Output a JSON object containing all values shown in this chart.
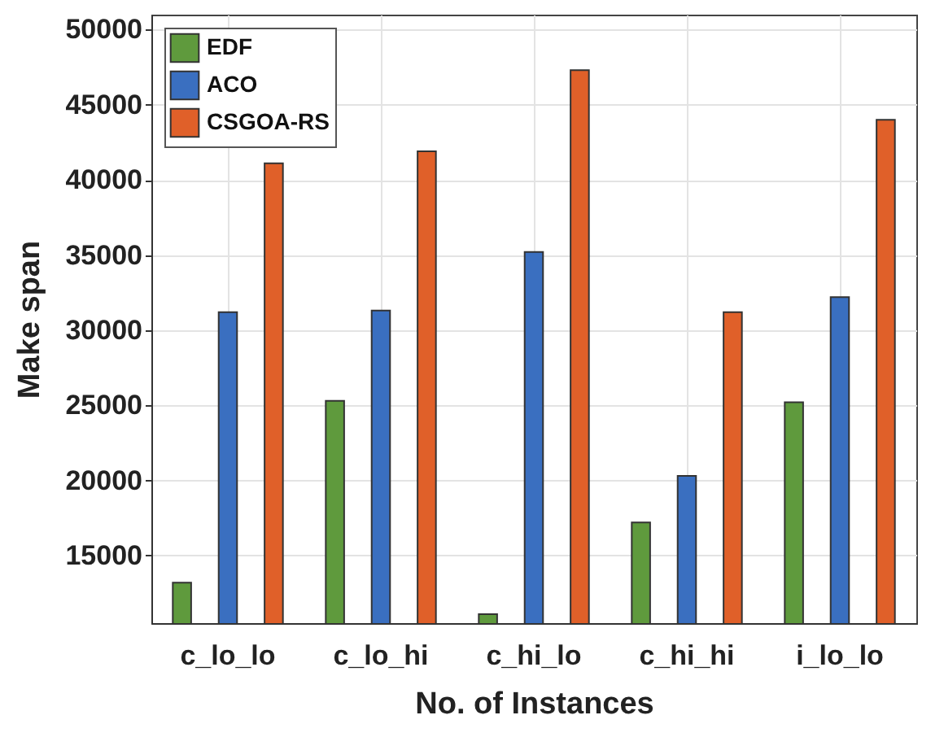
{
  "chart_data": {
    "type": "bar",
    "xlabel": "No. of Instances",
    "ylabel": "Make span",
    "categories": [
      "c_lo_lo",
      "c_lo_hi",
      "c_hi_lo",
      "c_hi_hi",
      "i_lo_lo"
    ],
    "series": [
      {
        "name": "EDF",
        "color": "#5f9a3d",
        "values": [
          13200,
          25300,
          11100,
          17200,
          25200
        ]
      },
      {
        "name": "ACO",
        "color": "#3a6fc0",
        "values": [
          31200,
          31300,
          35200,
          20300,
          32200
        ]
      },
      {
        "name": "CSGOA-RS",
        "color": "#e06029",
        "values": [
          41100,
          41900,
          47300,
          31200,
          44000
        ]
      }
    ],
    "ylim": [
      10500,
      51000
    ],
    "yticks": [
      15000,
      20000,
      25000,
      30000,
      35000,
      40000,
      45000,
      50000
    ],
    "grid": true,
    "legend": "top left"
  }
}
